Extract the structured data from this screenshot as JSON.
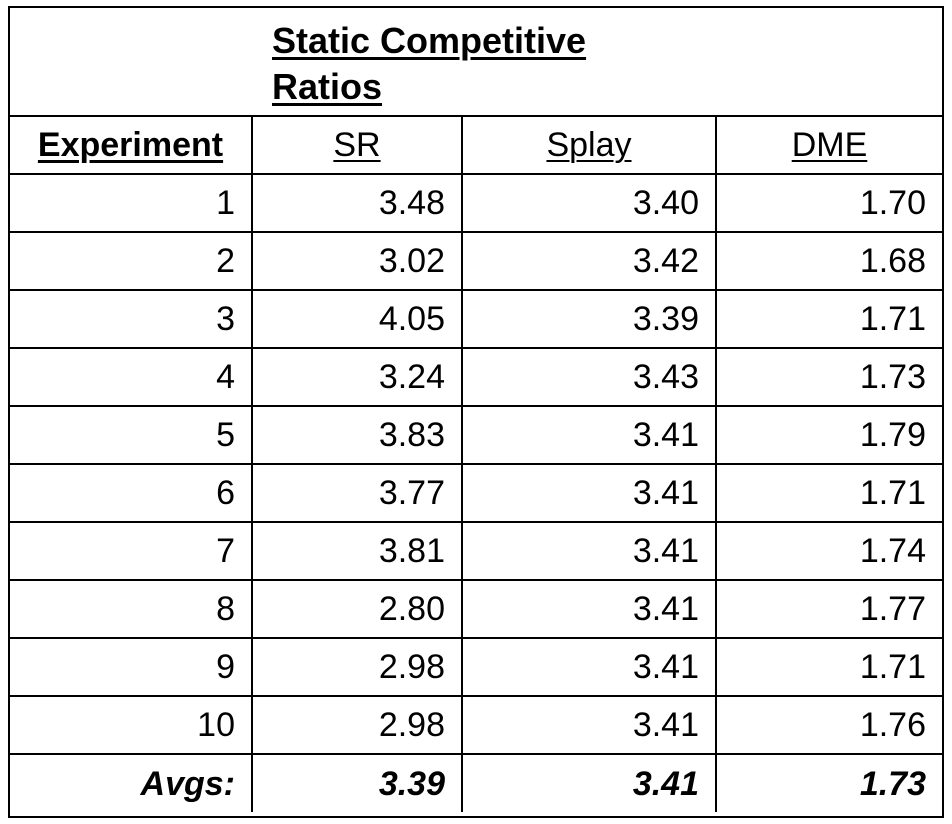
{
  "table": {
    "title_line1": "Static Competitive",
    "title_line2": "Ratios",
    "headers": [
      "Experiment",
      "SR",
      "Splay",
      "DME"
    ],
    "rows": [
      [
        "1",
        "3.48",
        "3.40",
        "1.70"
      ],
      [
        "2",
        "3.02",
        "3.42",
        "1.68"
      ],
      [
        "3",
        "4.05",
        "3.39",
        "1.71"
      ],
      [
        "4",
        "3.24",
        "3.43",
        "1.73"
      ],
      [
        "5",
        "3.83",
        "3.41",
        "1.79"
      ],
      [
        "6",
        "3.77",
        "3.41",
        "1.71"
      ],
      [
        "7",
        "3.81",
        "3.41",
        "1.74"
      ],
      [
        "8",
        "2.80",
        "3.41",
        "1.77"
      ],
      [
        "9",
        "2.98",
        "3.41",
        "1.71"
      ],
      [
        "10",
        "2.98",
        "3.41",
        "1.76"
      ]
    ],
    "averages": [
      "Avgs:",
      "3.39",
      "3.41",
      "1.73"
    ]
  }
}
